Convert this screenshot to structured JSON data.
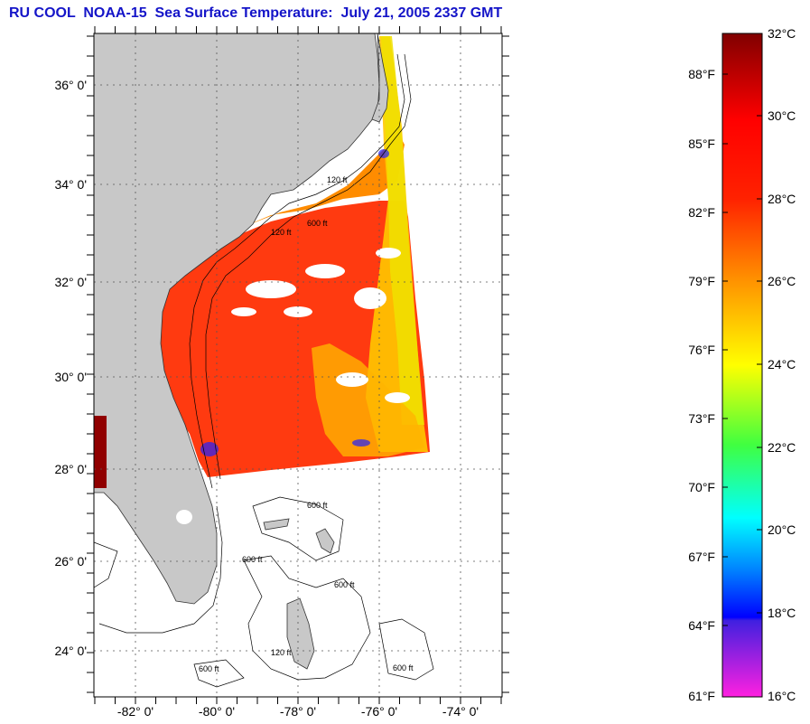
{
  "title": "RU COOL  NOAA-15  Sea Surface Temperature:  July 21, 2005 2337 GMT",
  "map": {
    "lat_labels": [
      "36° 0'",
      "34° 0'",
      "32° 0'",
      "30° 0'",
      "28° 0'",
      "26° 0'",
      "24° 0'"
    ],
    "lon_labels": [
      "-82° 0'",
      "-80° 0'",
      "-78° 0'",
      "-76° 0'",
      "-74° 0'"
    ],
    "contour_labels": [
      "120 ft",
      "600 ft"
    ],
    "colors": {
      "land": "#c8c8c8",
      "ocean_no_data": "#ffffff",
      "warm_water": "#ff3a10",
      "shelf_water": "#ff8c00",
      "cool_water": "#f0e000"
    }
  },
  "colorbar": {
    "fahrenheit_labels": [
      "88°F",
      "85°F",
      "82°F",
      "79°F",
      "76°F",
      "73°F",
      "70°F",
      "67°F",
      "64°F",
      "61°F"
    ],
    "celsius_labels": [
      "32°C",
      "30°C",
      "28°C",
      "26°C",
      "24°C",
      "22°C",
      "20°C",
      "18°C",
      "16°C"
    ]
  }
}
